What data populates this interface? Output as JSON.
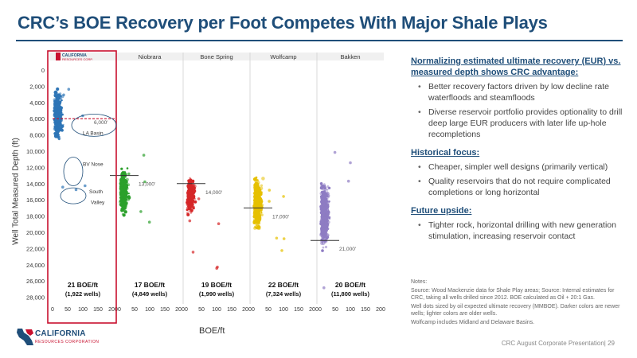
{
  "title": "CRC’s BOE Recovery per Foot Competes With Major Shale Plays",
  "y_axis_label": "Well Total Measured Depth (ft)",
  "x_axis_label": "BOE/ft",
  "logo": {
    "line1": "CALIFORNIA",
    "line2": "RESOURCES CORPORATION"
  },
  "right_panel": {
    "sections": [
      {
        "heading": "Normalizing estimated ultimate recovery (EUR) vs. measured depth shows CRC advantage:",
        "bullets": [
          "Better recovery factors driven by low decline rate waterfloods and steamfloods",
          "Diverse reservoir portfolio provides optionality to drill deep large EUR producers with later life up-hole recompletions"
        ]
      },
      {
        "heading": "Historical focus:",
        "bullets": [
          "Cheaper, simpler well designs (primarily vertical)",
          "Quality reservoirs that do not require complicated completions or long horizontal"
        ]
      },
      {
        "heading": "Future upside:",
        "bullets": [
          "Tighter rock, horizontal drilling with new generation stimulation, increasing reservoir contact"
        ]
      }
    ]
  },
  "notes": [
    "Notes:",
    "Source: Wood Mackenzie data for Shale Play areas; Source: Internal estimates for CRC, taking all wells drilled since 2012. BOE calculated as Oil + 20:1 Gas.",
    "Well dots sized by oil expected ultimate recovery (MMBOE). Darker colors are newer wells; lighter colors are older wells.",
    "Wolfcamp includes Midland and Delaware Basins."
  ],
  "footer": "CRC August Corporate Presentation| 29",
  "chart_data": {
    "type": "scatter",
    "y_axis": {
      "label": "Well Total Measured Depth (ft)",
      "range": [
        0,
        29000
      ],
      "reversed": true,
      "ticks": [
        "0",
        "2,000",
        "4,000",
        "6,000",
        "8,000",
        "10,000",
        "12,000",
        "14,000",
        "16,000",
        "18,000",
        "20,000",
        "22,000",
        "24,000",
        "26,000",
        "28,000"
      ]
    },
    "x_axis": {
      "label": "BOE/ft",
      "range": [
        0,
        200
      ],
      "ticks": [
        "0",
        "50",
        "100",
        "150",
        "200"
      ]
    },
    "panels": [
      {
        "name": "CRC",
        "header": "CALIFORNIA RESOURCES CORPORATION",
        "color": "#2e75b6",
        "boe_per_ft": "21 BOE/ft",
        "wells": "(1,922 wells)",
        "depth_marker": "6,000'",
        "depth_value": 6000,
        "annotations": [
          "LA Basin",
          "BV Nose",
          "South Valley"
        ],
        "highlight": true
      },
      {
        "name": "Niobrara",
        "header": "Niobrara",
        "color": "#2ca02c",
        "boe_per_ft": "17 BOE/ft",
        "wells": "(4,849 wells)",
        "depth_marker": "13,000'",
        "depth_value": 13000
      },
      {
        "name": "Bone Spring",
        "header": "Bone Spring",
        "color": "#d62728",
        "boe_per_ft": "19 BOE/ft",
        "wells": "(1,990 wells)",
        "depth_marker": "14,000'",
        "depth_value": 14000
      },
      {
        "name": "Wolfcamp",
        "header": "Wolfcamp",
        "color": "#e6c000",
        "boe_per_ft": "22 BOE/ft",
        "wells": "(7,324 wells)",
        "depth_marker": "17,000'",
        "depth_value": 17000
      },
      {
        "name": "Bakken",
        "header": "Bakken",
        "color": "#8e7cc3",
        "boe_per_ft": "20 BOE/ft",
        "wells": "(11,800 wells)",
        "depth_marker": "21,000'",
        "depth_value": 21000
      }
    ]
  }
}
